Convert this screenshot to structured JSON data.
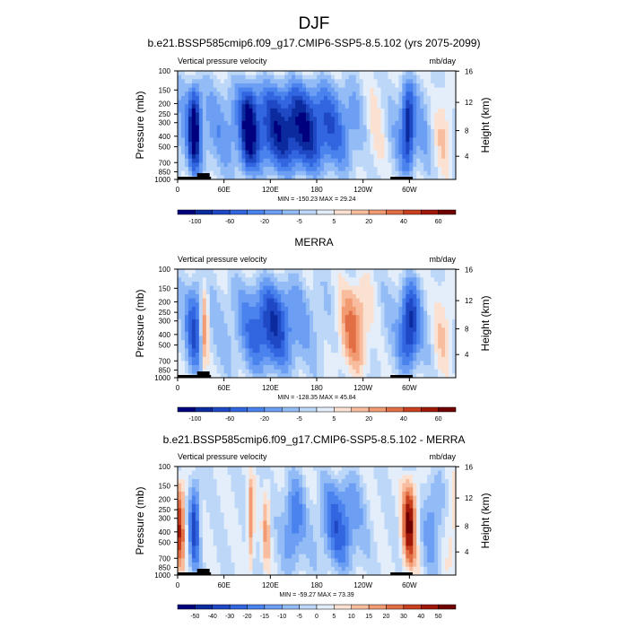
{
  "figure_title": "DJF",
  "chart_data": [
    {
      "type": "heatmap",
      "title": "b.e21.BSSP585cmip6.f09_g17.CMIP6-SSP5-8.5.102 (yrs 2075-2099)",
      "left_string": "Vertical pressure velocity",
      "right_string": "mb/day",
      "xlabel": "",
      "ylabel": "Pressure (mb)",
      "y2label": "Height (km)",
      "x_ticks": [
        "0",
        "60E",
        "120E",
        "180",
        "120W",
        "60W"
      ],
      "y_ticks": [
        "100",
        "150",
        "200",
        "250",
        "300",
        "400",
        "500",
        "700",
        "850",
        "1000"
      ],
      "y2_ticks": [
        "16",
        "12",
        "8",
        "4"
      ],
      "stats": "MIN = -150.23   MAX =  29.24",
      "colorbar_labels": [
        "-100",
        "-60",
        "-20",
        "-5",
        "5",
        "20",
        "40",
        "60"
      ]
    },
    {
      "type": "heatmap",
      "title": "MERRA",
      "left_string": "Vertical pressure velocity",
      "right_string": "mb/day",
      "xlabel": "",
      "ylabel": "Pressure (mb)",
      "y2label": "Height (km)",
      "x_ticks": [
        "0",
        "60E",
        "120E",
        "180",
        "120W",
        "60W"
      ],
      "y_ticks": [
        "100",
        "150",
        "200",
        "250",
        "300",
        "400",
        "500",
        "700",
        "850",
        "1000"
      ],
      "y2_ticks": [
        "16",
        "12",
        "8",
        "4"
      ],
      "stats": "MIN = -128.35   MAX =  45.84",
      "colorbar_labels": [
        "-100",
        "-60",
        "-20",
        "-5",
        "5",
        "20",
        "40",
        "60"
      ]
    },
    {
      "type": "heatmap",
      "title": "b.e21.BSSP585cmip6.f09_g17.CMIP6-SSP5-8.5.102 - MERRA",
      "left_string": "Vertical pressure velocity",
      "right_string": "mb/day",
      "xlabel": "",
      "ylabel": "Pressure (mb)",
      "y2label": "Height (km)",
      "x_ticks": [
        "0",
        "60E",
        "120E",
        "180",
        "120W",
        "60W"
      ],
      "y_ticks": [
        "100",
        "150",
        "200",
        "250",
        "300",
        "400",
        "500",
        "700",
        "850",
        "1000"
      ],
      "y2_ticks": [
        "16",
        "12",
        "8",
        "4"
      ],
      "stats": "MIN = -59.27   MAX =  73.39",
      "colorbar_labels": [
        "-50",
        "-40",
        "-30",
        "-20",
        "-15",
        "-10",
        "-5",
        "0",
        "5",
        "10",
        "15",
        "20",
        "30",
        "40",
        "50"
      ]
    }
  ],
  "colorbar_colors": [
    "#00007f",
    "#0b2a9e",
    "#1f49c4",
    "#3265e0",
    "#4a82ee",
    "#6c9ef4",
    "#93bcf6",
    "#bcd7f8",
    "#e4eefb",
    "#fbe1d1",
    "#f8bd9e",
    "#f29a72",
    "#e26e45",
    "#c8401f",
    "#a01808",
    "#700000"
  ]
}
